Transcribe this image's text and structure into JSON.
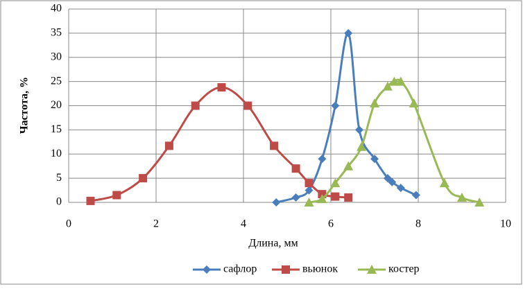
{
  "chart_data": {
    "type": "line",
    "smooth": true,
    "grid": true,
    "legend": "bottom",
    "x_label": "Длина, мм",
    "y_label": "Частота, %",
    "xlim": [
      0,
      10
    ],
    "xticks": [
      0,
      2,
      4,
      6,
      8,
      10
    ],
    "ylim": [
      0,
      40
    ],
    "yticks": [
      0,
      5,
      10,
      15,
      20,
      25,
      30,
      35,
      40
    ],
    "series": [
      {
        "name": "сафлор",
        "color": "#4a7ebb",
        "marker": "diamond",
        "x": [
          4.75,
          5.2,
          5.5,
          5.8,
          6.1,
          6.4,
          6.65,
          7.0,
          7.3,
          7.4,
          7.6,
          7.95
        ],
        "values": [
          0,
          1,
          2.5,
          9,
          20,
          35,
          15,
          9,
          5,
          4.2,
          3,
          1.5
        ]
      },
      {
        "name": "вьюнок",
        "color": "#be4b48",
        "marker": "square",
        "x": [
          0.5,
          1.1,
          1.7,
          2.3,
          2.9,
          3.5,
          4.1,
          4.7,
          5.2,
          5.5,
          5.8,
          6.1,
          6.4
        ],
        "values": [
          0.3,
          1.5,
          5,
          11.7,
          20,
          23.8,
          20,
          11.7,
          7,
          4,
          1.7,
          1.2,
          1
        ]
      },
      {
        "name": "костер",
        "color": "#98b954",
        "marker": "triangle",
        "x": [
          5.5,
          5.8,
          6.1,
          6.4,
          6.7,
          7.0,
          7.3,
          7.45,
          7.6,
          7.9,
          8.6,
          9.0,
          9.4
        ],
        "values": [
          0,
          0.7,
          4,
          7.5,
          11.5,
          20.5,
          24,
          25,
          25,
          20.5,
          4,
          1,
          0
        ]
      }
    ]
  }
}
